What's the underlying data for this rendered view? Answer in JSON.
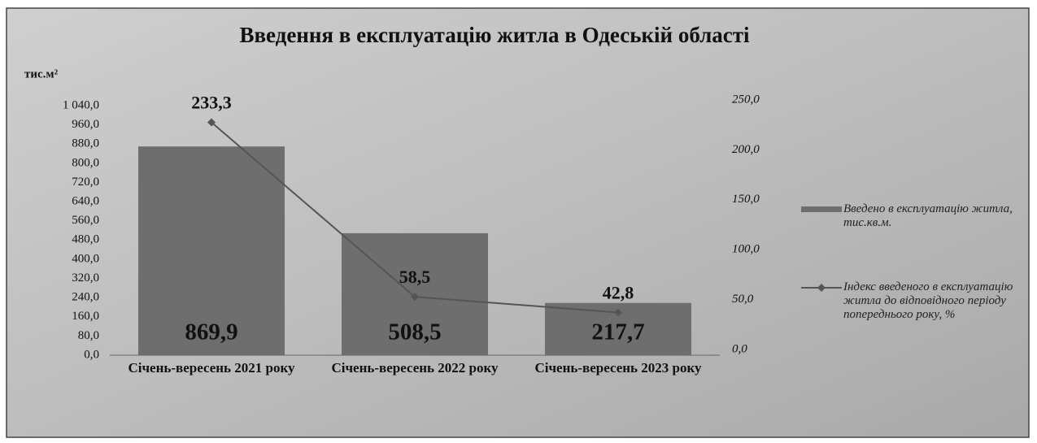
{
  "chart_data": {
    "type": "bar",
    "title": "Введення в експлуатацію житла в Одеській області",
    "y_label": "тис.м²",
    "categories": [
      "Січень-вересень 2021 року",
      "Січень-вересень 2022 року",
      "Січень-вересень 2023 року"
    ],
    "series": [
      {
        "name": "Введено в експлуатацію житла, тис.кв.м.",
        "type": "bar",
        "color": "#6e6e6e",
        "values": [
          869.9,
          508.5,
          217.7
        ],
        "value_labels": [
          "869,9",
          "508,5",
          "217,7"
        ]
      },
      {
        "name": "Індекс введеного в експлуатацію житла до відповідного періоду попереднього року, %",
        "type": "line",
        "axis": "y2",
        "color": "#555555",
        "values": [
          233.3,
          58.5,
          42.8
        ],
        "value_labels": [
          "233,3",
          "58,5",
          "42,8"
        ]
      }
    ],
    "ylim": [
      0,
      1040
    ],
    "yticks": [
      {
        "value": 0,
        "label": "0,0"
      },
      {
        "value": 80,
        "label": "80,0"
      },
      {
        "value": 160,
        "label": "160,0"
      },
      {
        "value": 240,
        "label": "240,0"
      },
      {
        "value": 320,
        "label": "320,0"
      },
      {
        "value": 400,
        "label": "400,0"
      },
      {
        "value": 480,
        "label": "480,0"
      },
      {
        "value": 560,
        "label": "560,0"
      },
      {
        "value": 640,
        "label": "640,0"
      },
      {
        "value": 720,
        "label": "720,0"
      },
      {
        "value": 800,
        "label": "800,0"
      },
      {
        "value": 880,
        "label": "880,0"
      },
      {
        "value": 960,
        "label": "960,0"
      },
      {
        "value": 1040,
        "label": "1 040,0"
      }
    ],
    "y2lim": [
      0,
      250
    ],
    "y2ticks": [
      {
        "value": 0,
        "label": "0,0"
      },
      {
        "value": 50,
        "label": "50,0"
      },
      {
        "value": 100,
        "label": "100,0"
      },
      {
        "value": 150,
        "label": "150,0"
      },
      {
        "value": 200,
        "label": "200,0"
      },
      {
        "value": 250,
        "label": "250,0"
      }
    ],
    "grid": false,
    "legend": "right"
  }
}
